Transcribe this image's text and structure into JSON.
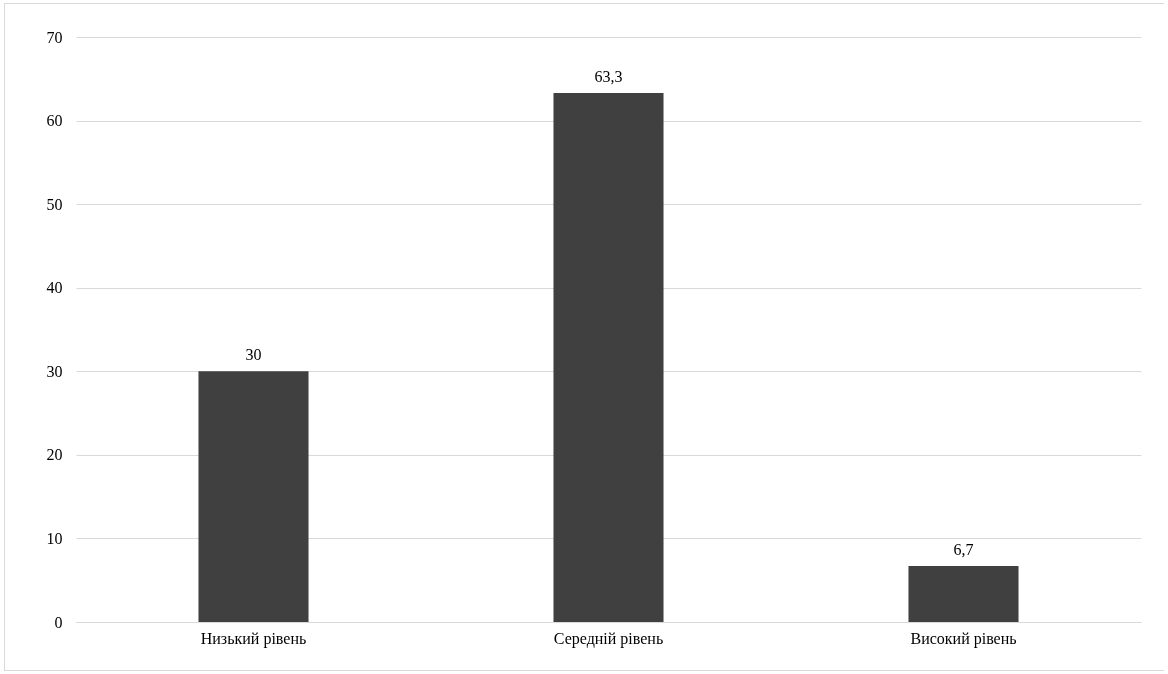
{
  "chart_data": {
    "type": "bar",
    "categories": [
      "Низький рівень",
      "Середній рівень",
      "Високий рівень"
    ],
    "values": [
      30,
      63.3,
      6.7
    ],
    "value_labels": [
      "30",
      "63,3",
      "6,7"
    ],
    "color": "#404040",
    "ylim": [
      0,
      70
    ],
    "yticks": [
      0,
      10,
      20,
      30,
      40,
      50,
      60,
      70
    ],
    "grid": "y"
  }
}
